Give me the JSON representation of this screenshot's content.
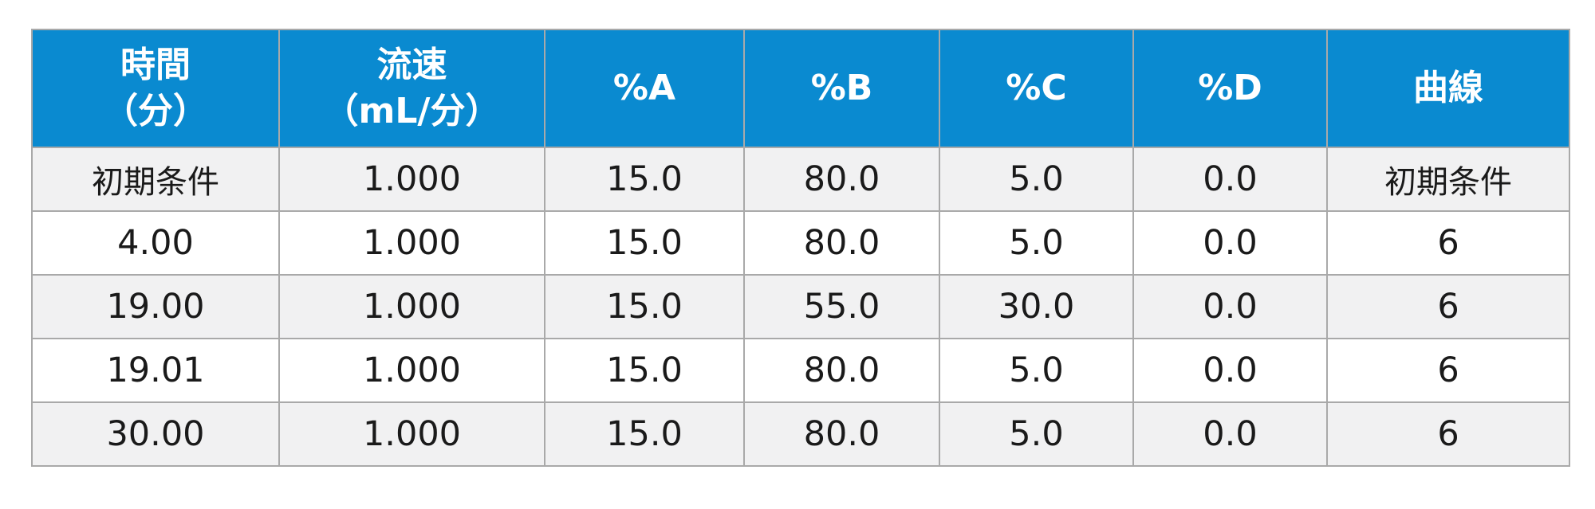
{
  "table": {
    "headers": [
      "時間\n（分）",
      "流速\n（mL/分）",
      "%A",
      "%B",
      "%C",
      "%D",
      "曲線"
    ],
    "rows": [
      [
        "初期条件",
        "1.000",
        "15.0",
        "80.0",
        "5.0",
        "0.0",
        "初期条件"
      ],
      [
        "4.00",
        "1.000",
        "15.0",
        "80.0",
        "5.0",
        "0.0",
        "6"
      ],
      [
        "19.00",
        "1.000",
        "15.0",
        "55.0",
        "30.0",
        "0.0",
        "6"
      ],
      [
        "19.01",
        "1.000",
        "15.0",
        "80.0",
        "5.0",
        "0.0",
        "6"
      ],
      [
        "30.00",
        "1.000",
        "15.0",
        "80.0",
        "5.0",
        "0.0",
        "6"
      ]
    ]
  },
  "colors": {
    "header_background": "#0a8ad0",
    "header_text": "#ffffff",
    "row_stripe": "#f1f1f2",
    "grid_line": "#a9a9a9"
  }
}
